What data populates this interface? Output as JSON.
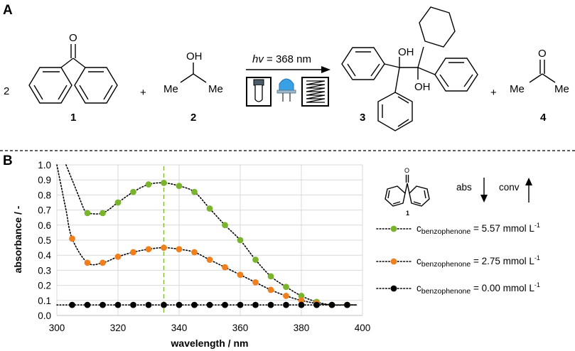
{
  "panels": {
    "a_label": "A",
    "b_label": "B"
  },
  "reaction": {
    "coefficient": "2",
    "plus": "+",
    "oh": "OH",
    "me": "Me",
    "o": "O",
    "hv": "hv",
    "hv_rest": " = 368 nm",
    "labels": [
      "1",
      "2",
      "3",
      "4"
    ]
  },
  "side_legend": {
    "molecule_label": "1",
    "o": "O",
    "abs": "abs",
    "conv": "conv",
    "entries": [
      {
        "prefix": "c",
        "subscript": "benzophenone",
        "value": " = 5.57 mmol L",
        "superscript": "-1",
        "color": "#7AB42D"
      },
      {
        "prefix": "c",
        "subscript": "benzophenone",
        "value": " = 2.75 mmol L",
        "superscript": "-1",
        "color": "#F07F1D"
      },
      {
        "prefix": "c",
        "subscript": "benzophenone",
        "value": " = 0.00 mmol L",
        "superscript": "-1",
        "color": "#000000"
      }
    ]
  },
  "colors": {
    "green": "#7AB42D",
    "orange": "#F07F1D",
    "black": "#000000",
    "grid": "#d9d9d9",
    "marker_line": "#7AB42D"
  },
  "chart_data": {
    "type": "scatter",
    "xlabel": "wavelength / nm",
    "ylabel": "absorbance / -",
    "xlim": [
      300,
      400
    ],
    "ylim": [
      0.0,
      1.0
    ],
    "xticks": [
      "300",
      "320",
      "340",
      "360",
      "380",
      "400"
    ],
    "yticks": [
      "0.0",
      "0.1",
      "0.2",
      "0.3",
      "0.4",
      "0.5",
      "0.6",
      "0.7",
      "0.8",
      "0.9",
      "1.0"
    ],
    "grid": true,
    "vertical_marker_x": 335,
    "legend_position": "right",
    "series": [
      {
        "name": "cbenzophenone = 5.57 mmol L-1",
        "color": "#7AB42D",
        "points": [
          [
            310,
            0.68
          ],
          [
            315,
            0.68
          ],
          [
            320,
            0.75
          ],
          [
            325,
            0.82
          ],
          [
            330,
            0.87
          ],
          [
            335,
            0.88
          ],
          [
            340,
            0.86
          ],
          [
            345,
            0.82
          ],
          [
            350,
            0.71
          ],
          [
            355,
            0.6
          ],
          [
            360,
            0.5
          ],
          [
            365,
            0.37
          ],
          [
            370,
            0.26
          ],
          [
            375,
            0.19
          ],
          [
            380,
            0.13
          ],
          [
            385,
            0.09
          ],
          [
            390,
            0.07
          ],
          [
            395,
            0.07
          ]
        ],
        "curve": [
          [
            303,
            1.0
          ],
          [
            305,
            0.9
          ],
          [
            307,
            0.8
          ],
          [
            309,
            0.7
          ],
          [
            310,
            0.68
          ],
          [
            315,
            0.68
          ],
          [
            320,
            0.75
          ],
          [
            325,
            0.82
          ],
          [
            330,
            0.87
          ],
          [
            335,
            0.88
          ],
          [
            340,
            0.86
          ],
          [
            345,
            0.82
          ],
          [
            350,
            0.71
          ],
          [
            355,
            0.6
          ],
          [
            360,
            0.5
          ],
          [
            365,
            0.37
          ],
          [
            370,
            0.26
          ],
          [
            375,
            0.19
          ],
          [
            380,
            0.13
          ],
          [
            385,
            0.09
          ],
          [
            390,
            0.07
          ],
          [
            395,
            0.07
          ],
          [
            398,
            0.07
          ]
        ]
      },
      {
        "name": "cbenzophenone = 2.75 mmol L-1",
        "color": "#F07F1D",
        "points": [
          [
            305,
            0.51
          ],
          [
            310,
            0.35
          ],
          [
            315,
            0.35
          ],
          [
            320,
            0.39
          ],
          [
            325,
            0.42
          ],
          [
            330,
            0.44
          ],
          [
            335,
            0.45
          ],
          [
            340,
            0.44
          ],
          [
            345,
            0.42
          ],
          [
            350,
            0.37
          ],
          [
            355,
            0.32
          ],
          [
            360,
            0.27
          ],
          [
            365,
            0.22
          ],
          [
            370,
            0.17
          ],
          [
            375,
            0.13
          ],
          [
            380,
            0.1
          ],
          [
            385,
            0.08
          ],
          [
            390,
            0.07
          ],
          [
            395,
            0.07
          ]
        ],
        "curve": [
          [
            300,
            1.0
          ],
          [
            301.5,
            0.85
          ],
          [
            303,
            0.7
          ],
          [
            305,
            0.51
          ],
          [
            310,
            0.35
          ],
          [
            315,
            0.35
          ],
          [
            320,
            0.39
          ],
          [
            325,
            0.42
          ],
          [
            330,
            0.44
          ],
          [
            335,
            0.45
          ],
          [
            340,
            0.44
          ],
          [
            345,
            0.42
          ],
          [
            350,
            0.37
          ],
          [
            355,
            0.32
          ],
          [
            360,
            0.27
          ],
          [
            365,
            0.22
          ],
          [
            370,
            0.17
          ],
          [
            375,
            0.13
          ],
          [
            380,
            0.1
          ],
          [
            385,
            0.08
          ],
          [
            390,
            0.07
          ],
          [
            395,
            0.07
          ],
          [
            398,
            0.07
          ]
        ]
      },
      {
        "name": "cbenzophenone = 0.00 mmol L-1",
        "color": "#000000",
        "points": [
          [
            305,
            0.07
          ],
          [
            310,
            0.07
          ],
          [
            315,
            0.07
          ],
          [
            320,
            0.07
          ],
          [
            325,
            0.07
          ],
          [
            330,
            0.07
          ],
          [
            335,
            0.07
          ],
          [
            340,
            0.07
          ],
          [
            345,
            0.07
          ],
          [
            350,
            0.07
          ],
          [
            355,
            0.07
          ],
          [
            360,
            0.07
          ],
          [
            365,
            0.07
          ],
          [
            370,
            0.07
          ],
          [
            375,
            0.07
          ],
          [
            380,
            0.07
          ],
          [
            385,
            0.07
          ],
          [
            390,
            0.07
          ],
          [
            395,
            0.07
          ]
        ],
        "curve": [
          [
            300,
            0.07
          ],
          [
            305,
            0.07
          ],
          [
            310,
            0.07
          ],
          [
            315,
            0.07
          ],
          [
            320,
            0.07
          ],
          [
            325,
            0.07
          ],
          [
            330,
            0.07
          ],
          [
            335,
            0.07
          ],
          [
            340,
            0.07
          ],
          [
            345,
            0.07
          ],
          [
            350,
            0.07
          ],
          [
            355,
            0.07
          ],
          [
            360,
            0.07
          ],
          [
            365,
            0.07
          ],
          [
            370,
            0.07
          ],
          [
            375,
            0.07
          ],
          [
            380,
            0.07
          ],
          [
            385,
            0.07
          ],
          [
            390,
            0.07
          ],
          [
            395,
            0.07
          ],
          [
            398,
            0.07
          ]
        ]
      }
    ]
  }
}
